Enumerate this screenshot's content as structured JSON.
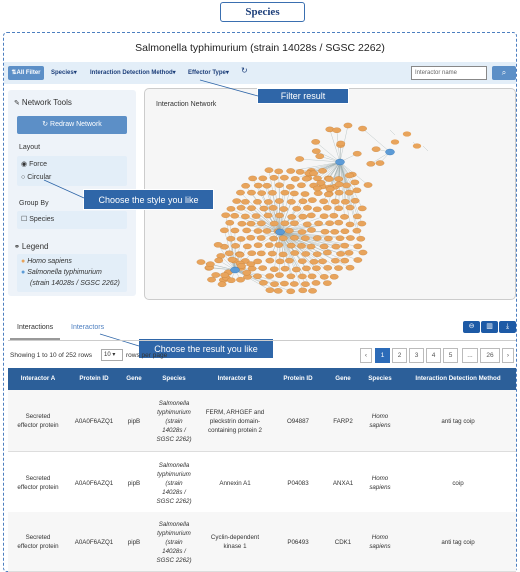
{
  "tab_title": "Species",
  "page_title": "Salmonella typhimurium (strain 14028s / SGSC 2262)",
  "filter": {
    "all_filter": "All Filter",
    "species": "Species",
    "method": "Interaction Detection Method",
    "effector": "Effector Type",
    "search_placeholder": "Interactor name"
  },
  "tools": {
    "header": "Network Tools",
    "redraw": "Redraw Network",
    "layout_label": "Layout",
    "layout_options": [
      "Force",
      "Circular"
    ],
    "groupby_label": "Group By",
    "groupby_option": "Species",
    "legend_label": "Legend",
    "legend_homo": "Homo sapiens",
    "legend_salm1": "Salmonella typhimurium",
    "legend_salm2": "(strain 14028s / SGSC 2262)"
  },
  "network_title": "Interaction Network",
  "callouts": {
    "filter": "Filter result",
    "style": "Choose the style you like",
    "result": "Choose the result you like"
  },
  "result_tabs": [
    "Interactions",
    "Interactors"
  ],
  "showing": "Showing 1 to 10 of 252 rows",
  "rows_per_page": "10",
  "rows_text": "rows per page",
  "pagination": [
    "‹",
    "1",
    "2",
    "3",
    "4",
    "5",
    "...",
    "26",
    "›"
  ],
  "table": {
    "headers": [
      "Interactor A",
      "Protein ID",
      "Gene",
      "Species",
      "Interactor B",
      "Protein ID",
      "Gene",
      "Species",
      "Interaction Detection Method"
    ],
    "rows": [
      {
        "a_lines": [
          "Secreted",
          "effector protein"
        ],
        "pid_a": "A0A0F6AZQ1",
        "gene_a": "pipB",
        "sp_a": [
          "Salmonella",
          "typhimurium",
          "(strain",
          "14028s /",
          "SGSC 2262)"
        ],
        "b_lines": [
          "FERM, ARHGEF and",
          "pleckstrin domain-",
          "containing protein 2"
        ],
        "pid_b": "O94887",
        "gene_b": "FARP2",
        "sp_b": [
          "Homo",
          "sapiens"
        ],
        "method": "anti tag coip"
      },
      {
        "a_lines": [
          "Secreted",
          "effector protein"
        ],
        "pid_a": "A0A0F6AZQ1",
        "gene_a": "pipB",
        "sp_a": [
          "Salmonella",
          "typhimurium",
          "(strain",
          "14028s /",
          "SGSC 2262)"
        ],
        "b_lines": [
          "Annexin A1"
        ],
        "pid_b": "P04083",
        "gene_b": "ANXA1",
        "sp_b": [
          "Homo",
          "sapiens"
        ],
        "method": "coip"
      },
      {
        "a_lines": [
          "Secreted",
          "effector protein"
        ],
        "pid_a": "A0A0F6AZQ1",
        "gene_a": "pipB",
        "sp_a": [
          "Salmonella",
          "typhimurium",
          "(strain",
          "14028s /",
          "SGSC 2262)"
        ],
        "b_lines": [
          "Cyclin-dependent",
          "kinase 1"
        ],
        "pid_b": "P06493",
        "gene_b": "CDK1",
        "sp_b": [
          "Homo",
          "sapiens"
        ],
        "method": "anti tag coip"
      }
    ]
  },
  "colors": {
    "homo": "#e8a45c",
    "salmonella": "#5c9bd6",
    "header": "#2c5f99",
    "accent": "#5c8fc7"
  }
}
